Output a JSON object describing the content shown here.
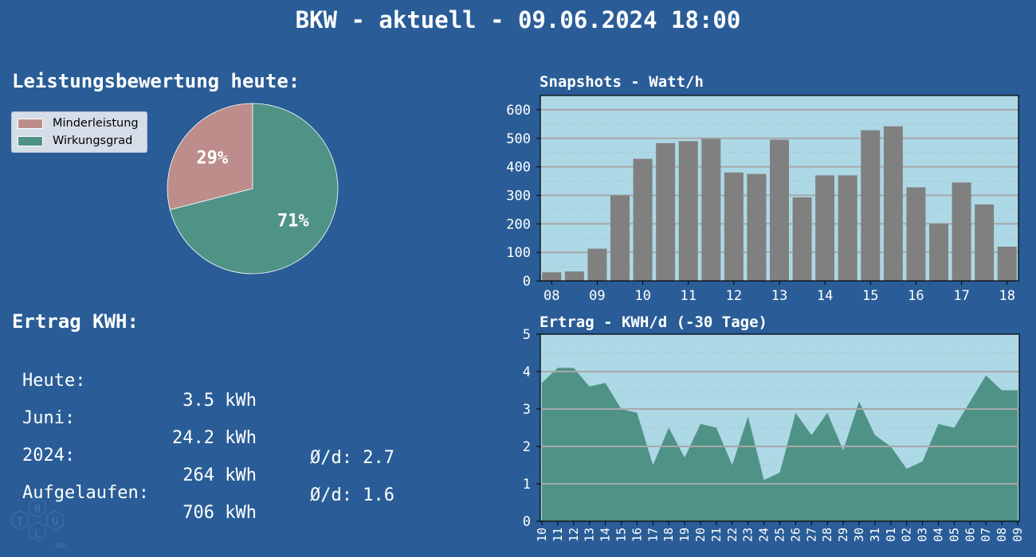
{
  "title": "BKW - aktuell - 09.06.2024 18:00",
  "left": {
    "pie_heading": "Leistungsbewertung heute:",
    "kwh_heading": "Ertrag KWH:",
    "rows": [
      {
        "label": "Heute:",
        "value": "3.5 kWh",
        "avg": ""
      },
      {
        "label": "Juni:",
        "value": "24.2 kWh",
        "avg": "Ø/d: 2.7"
      },
      {
        "label": "2024:",
        "value": "264 kWh",
        "avg": "Ø/d: 1.6"
      },
      {
        "label": "Aufgelaufen:",
        "value": "706 kWh",
        "avg": ""
      }
    ],
    "logo_letters": [
      "T",
      "H",
      "L",
      "U"
    ],
    "logo_suffix": ".de"
  },
  "colors": {
    "background": "#2a5d97",
    "plot_bg": "#add8e6",
    "bar": "#808080",
    "area": "#4f9387",
    "pie_minder": "#bc8d8a",
    "pie_wirkung": "#4f9387",
    "grid": "#a8a8a8"
  },
  "chart_data": [
    {
      "type": "pie",
      "labels": [
        "Minderleistung",
        "Wirkungsgrad"
      ],
      "values": [
        29,
        71
      ],
      "value_labels": [
        "29%",
        "71%"
      ],
      "legend": "top-left"
    },
    {
      "type": "bar",
      "title": "Snapshots - Watt/h",
      "x": [
        8.0,
        8.5,
        9.0,
        9.5,
        10.0,
        10.5,
        11.0,
        11.5,
        12.0,
        12.5,
        13.0,
        13.5,
        14.0,
        14.5,
        15.0,
        15.5,
        16.0,
        16.5,
        17.0,
        17.5,
        18.0
      ],
      "values": [
        30,
        33,
        113,
        300,
        428,
        483,
        490,
        498,
        380,
        375,
        495,
        293,
        370,
        370,
        528,
        542,
        328,
        200,
        345,
        268,
        120
      ],
      "xticks": [
        "08",
        "09",
        "10",
        "11",
        "12",
        "13",
        "14",
        "15",
        "16",
        "17",
        "18"
      ],
      "ylim": [
        0,
        650
      ],
      "yticks": [
        0,
        100,
        200,
        300,
        400,
        500,
        600
      ],
      "grid": true
    },
    {
      "type": "area",
      "title": "Ertrag - KWH/d (-30 Tage)",
      "categories": [
        "10",
        "11",
        "12",
        "13",
        "14",
        "15",
        "16",
        "17",
        "18",
        "19",
        "20",
        "21",
        "22",
        "23",
        "24",
        "25",
        "26",
        "27",
        "28",
        "29",
        "30",
        "31",
        "01",
        "02",
        "03",
        "04",
        "05",
        "06",
        "07",
        "08",
        "09"
      ],
      "values": [
        3.7,
        4.1,
        4.1,
        3.6,
        3.7,
        3.0,
        2.9,
        1.5,
        2.5,
        1.7,
        2.6,
        2.5,
        1.5,
        2.8,
        1.1,
        1.3,
        2.9,
        2.3,
        2.9,
        1.9,
        3.2,
        2.3,
        2.0,
        1.4,
        1.6,
        2.6,
        2.5,
        3.2,
        3.9,
        3.5,
        3.5
      ],
      "ylim": [
        0,
        5
      ],
      "yticks": [
        0,
        1,
        2,
        3,
        4,
        5
      ],
      "grid": true
    }
  ]
}
